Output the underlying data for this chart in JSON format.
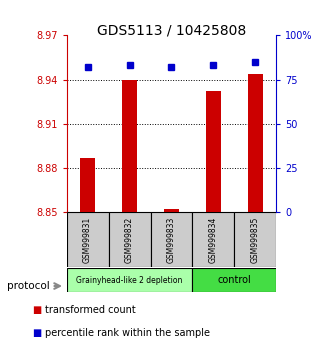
{
  "title": "GDS5113 / 10425808",
  "samples": [
    "GSM999831",
    "GSM999832",
    "GSM999833",
    "GSM999834",
    "GSM999835"
  ],
  "red_values": [
    8.887,
    8.94,
    8.852,
    8.932,
    8.944
  ],
  "blue_values": [
    82,
    83,
    82,
    83,
    85
  ],
  "ylim_left": [
    8.85,
    8.97
  ],
  "ylim_right": [
    0,
    100
  ],
  "yticks_left": [
    8.85,
    8.88,
    8.91,
    8.94,
    8.97
  ],
  "yticks_right": [
    0,
    25,
    50,
    75,
    100
  ],
  "ytick_labels_right": [
    "0",
    "25",
    "50",
    "75",
    "100%"
  ],
  "red_color": "#cc0000",
  "blue_color": "#0000cc",
  "bar_width": 0.35,
  "group1_samples": [
    0,
    1,
    2
  ],
  "group2_samples": [
    3,
    4
  ],
  "group1_label": "Grainyhead-like 2 depletion",
  "group2_label": "control",
  "group1_color": "#aaffaa",
  "group2_color": "#44dd44",
  "protocol_label": "protocol",
  "legend_red": "transformed count",
  "legend_blue": "percentile rank within the sample",
  "title_fontsize": 10
}
